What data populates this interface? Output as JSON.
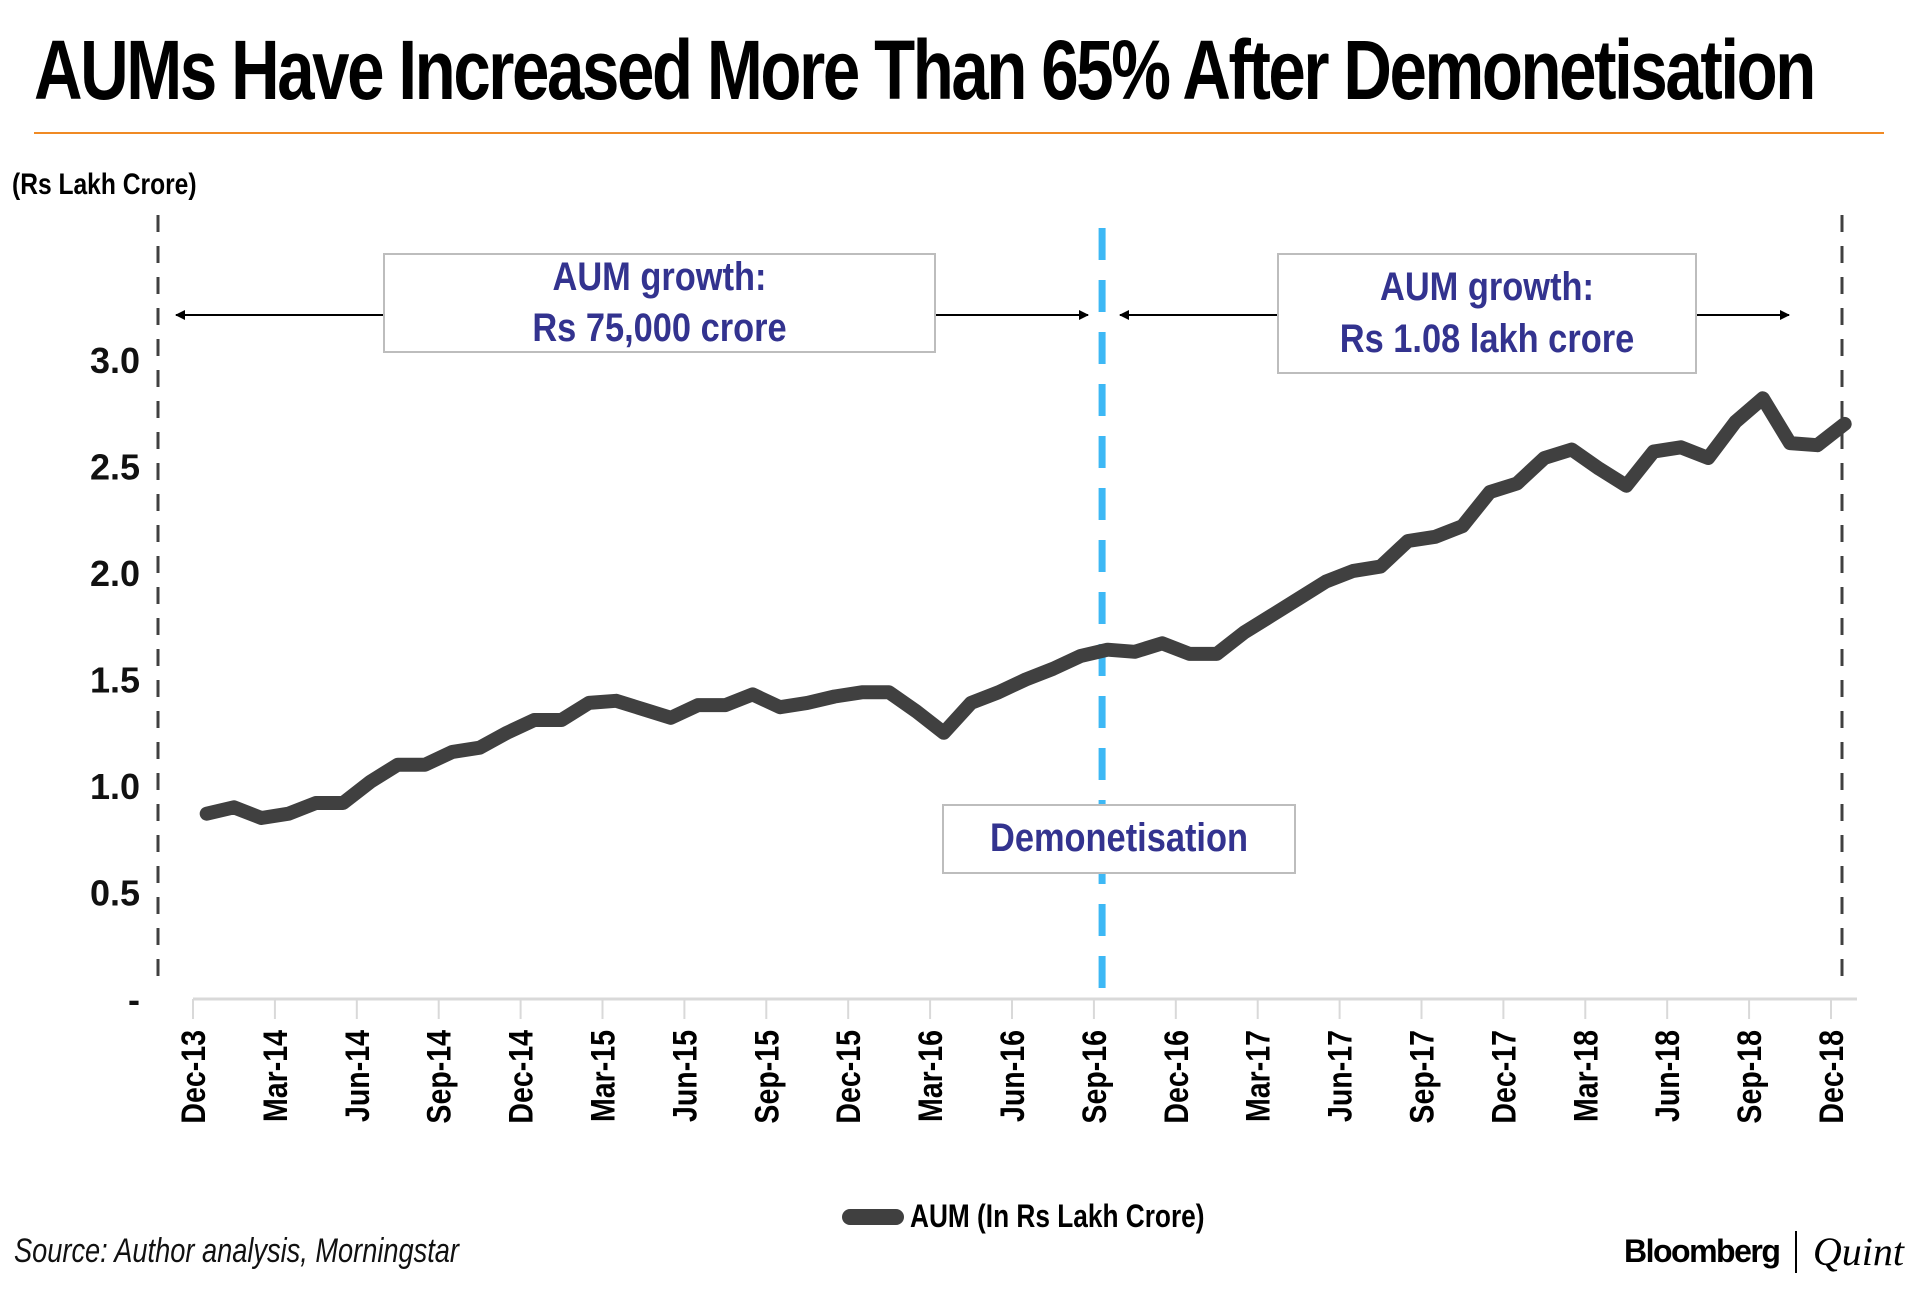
{
  "header": {
    "title": "AUMs Have Increased More Than 65% After Demonetisation",
    "unit_label": "(Rs Lakh Crore)"
  },
  "annotations": {
    "pre": {
      "line1": "AUM growth:",
      "line2": "Rs 75,000 crore"
    },
    "post": {
      "line1": "AUM growth:",
      "line2": "Rs 1.08 lakh crore"
    },
    "event": {
      "label": "Demonetisation"
    }
  },
  "colors": {
    "line": "#404040",
    "event_line": "#3db8f5",
    "annotation_text": "#33338f",
    "title_rule": "#f08a24",
    "boundary_line": "#404040"
  },
  "footer": {
    "source": "Source: Author analysis, Morningstar",
    "brand_primary": "Bloomberg",
    "brand_secondary": "Quint"
  },
  "chart_data": {
    "type": "line",
    "title": "AUMs Have Increased More Than 65% After Demonetisation",
    "xlabel": "",
    "ylabel": "(Rs Lakh Crore)",
    "ylim": [
      0,
      3.5
    ],
    "yticks": [
      0,
      0.5,
      1.0,
      1.5,
      2.0,
      2.5,
      3.0
    ],
    "ytick_labels": [
      "-",
      "0.5",
      "1.0",
      "1.5",
      "2.0",
      "2.5",
      "3.0"
    ],
    "x_tick_labels": [
      "Dec-13",
      "Mar-14",
      "Jun-14",
      "Sep-14",
      "Dec-14",
      "Mar-15",
      "Jun-15",
      "Sep-15",
      "Dec-15",
      "Mar-16",
      "Jun-16",
      "Sep-16",
      "Dec-16",
      "Mar-17",
      "Jun-17",
      "Sep-17",
      "Dec-17",
      "Mar-18",
      "Jun-18",
      "Sep-18",
      "Dec-18"
    ],
    "x_tick_every_n_points": 3,
    "grid": false,
    "legend": "bottom-center",
    "event_marker": {
      "label": "Demonetisation",
      "position_index": 32.8
    },
    "series": [
      {
        "name": "AUM (In Rs Lakh Crore)",
        "values": [
          0.87,
          0.9,
          0.85,
          0.87,
          0.92,
          0.92,
          1.02,
          1.1,
          1.1,
          1.16,
          1.18,
          1.25,
          1.31,
          1.31,
          1.39,
          1.4,
          1.36,
          1.32,
          1.38,
          1.38,
          1.43,
          1.37,
          1.39,
          1.42,
          1.44,
          1.44,
          1.35,
          1.25,
          1.39,
          1.44,
          1.5,
          1.55,
          1.61,
          1.64,
          1.63,
          1.67,
          1.62,
          1.62,
          1.72,
          1.8,
          1.88,
          1.96,
          2.01,
          2.03,
          2.15,
          2.17,
          2.22,
          2.38,
          2.42,
          2.54,
          2.58,
          2.49,
          2.41,
          2.57,
          2.59,
          2.54,
          2.71,
          2.82,
          2.61,
          2.6,
          2.7
        ]
      }
    ]
  }
}
